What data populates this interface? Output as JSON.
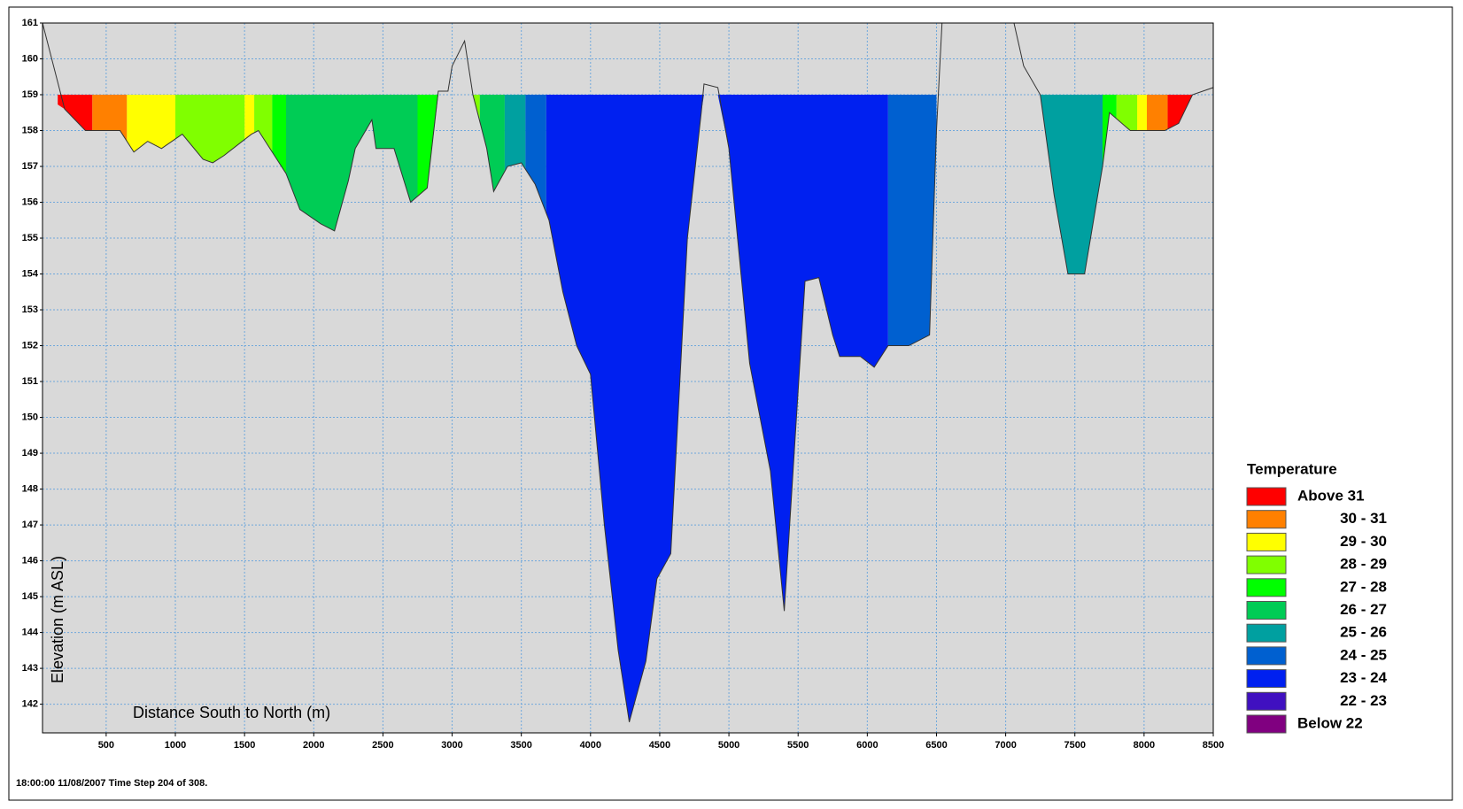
{
  "chart_data": {
    "type": "section",
    "x_label": "Distance South to North (m)",
    "y_label": "Elevation (m ASL)",
    "footer": "18:00:00 11/08/2007  Time Step 204 of 308.",
    "legend_title": "Temperature",
    "xlim": [
      40,
      8500
    ],
    "ylim": [
      141.2,
      161
    ],
    "xticks": [
      500,
      1000,
      1500,
      2000,
      2500,
      3000,
      3500,
      4000,
      4500,
      5000,
      5500,
      6000,
      6500,
      7000,
      7500,
      8000,
      8500
    ],
    "yticks": [
      142,
      143,
      144,
      145,
      146,
      147,
      148,
      149,
      150,
      151,
      152,
      153,
      154,
      155,
      156,
      157,
      158,
      159,
      160,
      161
    ],
    "grid": true,
    "water_level": 159,
    "bed": {
      "x": [
        40,
        200,
        350,
        600,
        700,
        800,
        900,
        1050,
        1200,
        1270,
        1350,
        1550,
        1600,
        1800,
        1900,
        2050,
        2150,
        2250,
        2300,
        2420,
        2450,
        2580,
        2700,
        2820,
        2900,
        2970,
        3000,
        3090,
        3150,
        3250,
        3300,
        3400,
        3500,
        3600,
        3700,
        3800,
        3900,
        4000,
        4100,
        4200,
        4280,
        4400,
        4480,
        4580,
        4700,
        4800,
        4820,
        4920,
        5000,
        5150,
        5300,
        5400,
        5550,
        5650,
        5750,
        5800,
        5950,
        6050,
        6150,
        6300,
        6450,
        6500,
        6540,
        7060,
        7130,
        7250,
        7350,
        7450,
        7570,
        7700,
        7750,
        7900,
        8150,
        8250,
        8350,
        8500
      ],
      "elevation": [
        161,
        158.6,
        158.0,
        158.0,
        157.4,
        157.7,
        157.5,
        157.9,
        157.2,
        157.1,
        157.3,
        157.9,
        158.0,
        156.8,
        155.8,
        155.4,
        155.2,
        156.6,
        157.5,
        158.3,
        157.5,
        157.5,
        156.0,
        156.4,
        159.1,
        159.1,
        159.8,
        160.5,
        159.0,
        157.5,
        156.3,
        157.0,
        157.1,
        156.5,
        155.5,
        153.5,
        152.0,
        151.2,
        147.0,
        143.5,
        141.5,
        143.2,
        145.5,
        146.2,
        155.0,
        158.5,
        159.3,
        159.2,
        157.5,
        151.5,
        148.5,
        144.6,
        153.8,
        153.9,
        152.3,
        151.7,
        151.7,
        151.4,
        152.0,
        152.0,
        152.3,
        158.0,
        161,
        161,
        159.8,
        159.0,
        156.2,
        154.0,
        154.0,
        157.0,
        158.5,
        158.0,
        158.0,
        158.2,
        159.0,
        159.2
      ]
    },
    "series": [
      {
        "name": "Above 31",
        "color": "#ff0000",
        "ranges": [
          [
            150,
            400
          ],
          [
            8170,
            8350
          ]
        ]
      },
      {
        "name": "30 - 31",
        "color": "#ff8000",
        "ranges": [
          [
            400,
            650
          ],
          [
            8020,
            8170
          ]
        ]
      },
      {
        "name": "29 - 30",
        "color": "#ffff00",
        "ranges": [
          [
            650,
            1000
          ],
          [
            1500,
            1570
          ],
          [
            7950,
            8020
          ]
        ]
      },
      {
        "name": "28 - 29",
        "color": "#80ff00",
        "ranges": [
          [
            1000,
            1500
          ],
          [
            1570,
            1700
          ],
          [
            3150,
            3200
          ],
          [
            7800,
            7950
          ]
        ]
      },
      {
        "name": "27 - 28",
        "color": "#00ff00",
        "ranges": [
          [
            1700,
            1800
          ],
          [
            2750,
            2980
          ],
          [
            7700,
            7800
          ]
        ]
      },
      {
        "name": "26 - 27",
        "color": "#00cc55",
        "ranges": [
          [
            1800,
            2750
          ],
          [
            3200,
            3380
          ]
        ]
      },
      {
        "name": "25 - 26",
        "color": "#00a0a0",
        "ranges": [
          [
            3380,
            3530
          ],
          [
            7100,
            7700
          ]
        ]
      },
      {
        "name": "24 - 25",
        "color": "#0060d0",
        "ranges": [
          [
            3530,
            3680
          ],
          [
            6150,
            6500
          ]
        ]
      },
      {
        "name": "23 - 24",
        "color": "#0020f0",
        "ranges": [
          [
            3680,
            6150
          ]
        ]
      },
      {
        "name": "22 - 23",
        "color": "#4010c0",
        "ranges": []
      },
      {
        "name": "Below 22",
        "color": "#800080",
        "ranges": []
      }
    ]
  }
}
